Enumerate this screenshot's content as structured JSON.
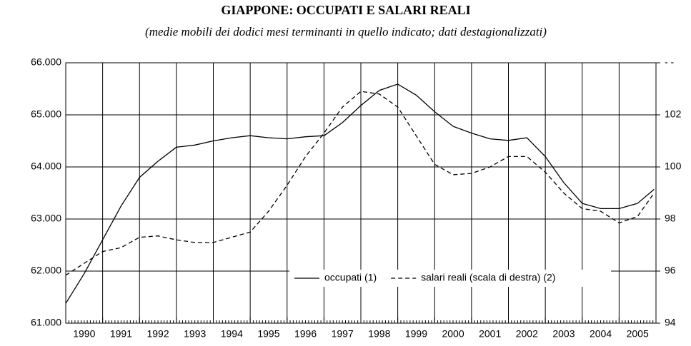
{
  "chart_data": {
    "type": "line",
    "title": "GIAPPONE: OCCUPATI E SALARI REALI",
    "subtitle": "(medie mobili dei dodici mesi terminanti in quello indicato; dati destagionalizzati)",
    "x": [
      1990.0,
      1990.5,
      1991.0,
      1991.5,
      1992.0,
      1992.5,
      1993.0,
      1993.5,
      1994.0,
      1994.5,
      1995.0,
      1995.5,
      1996.0,
      1996.5,
      1997.0,
      1997.5,
      1998.0,
      1998.5,
      1999.0,
      1999.5,
      2000.0,
      2000.5,
      2001.0,
      2001.5,
      2002.0,
      2002.5,
      2003.0,
      2003.5,
      2004.0,
      2004.5,
      2005.0,
      2005.5,
      2005.95
    ],
    "xlim": [
      1990,
      2006
    ],
    "xticks": [
      1990,
      1991,
      1992,
      1993,
      1994,
      1995,
      1996,
      1997,
      1998,
      1999,
      2000,
      2001,
      2002,
      2003,
      2004,
      2005
    ],
    "ylim": [
      61000,
      66000
    ],
    "yticks": [
      {
        "value": 61000,
        "label": "61.000"
      },
      {
        "value": 62000,
        "label": "62.000"
      },
      {
        "value": 63000,
        "label": "63.000"
      },
      {
        "value": 64000,
        "label": "64.000"
      },
      {
        "value": 65000,
        "label": "65.000"
      },
      {
        "value": 66000,
        "label": "66.000"
      }
    ],
    "y2lim": [
      94,
      104
    ],
    "y2ticks": [
      94,
      96,
      98,
      100,
      102,
      {
        "value": 104,
        "label": "- -"
      }
    ],
    "grid": true,
    "series": [
      {
        "name": "occupati (1)",
        "color": "#000000",
        "dash": "solid",
        "values": [
          61380,
          61950,
          62600,
          63250,
          63800,
          64110,
          64380,
          64420,
          64500,
          64560,
          64600,
          64560,
          64540,
          64580,
          64600,
          64850,
          65180,
          65470,
          65590,
          65380,
          65060,
          64780,
          64650,
          64540,
          64510,
          64560,
          64200,
          63700,
          63300,
          63200,
          63200,
          63300,
          63570
        ]
      },
      {
        "name": "salari reali (scala di destra) (2)",
        "color": "#000000",
        "dash": "dashed",
        "axis": "y2",
        "values": [
          95.84,
          96.3,
          96.75,
          96.9,
          97.3,
          97.35,
          97.2,
          97.1,
          97.1,
          97.3,
          97.5,
          98.3,
          99.3,
          100.4,
          101.3,
          102.3,
          102.9,
          102.8,
          102.3,
          101.2,
          100.1,
          99.7,
          99.75,
          100.0,
          100.4,
          100.4,
          99.8,
          99.0,
          98.4,
          98.3,
          97.85,
          98.1,
          99.0
        ]
      }
    ]
  }
}
